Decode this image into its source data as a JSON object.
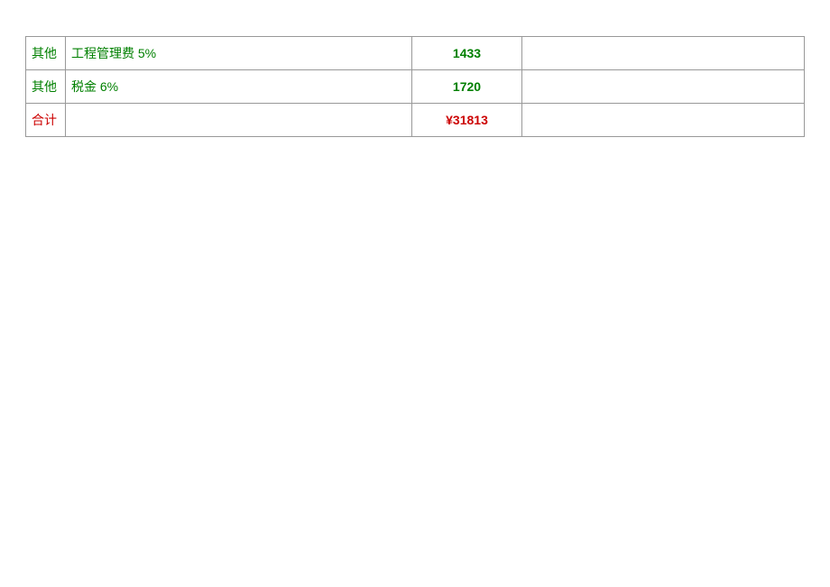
{
  "table": {
    "colors": {
      "green": "#008000",
      "red": "#cc0000",
      "border": "#999999",
      "background": "#ffffff"
    },
    "column_widths": {
      "col1": 44,
      "col2": 384,
      "col3": 122,
      "col4": "auto"
    },
    "font_size": 14,
    "rows": [
      {
        "category": "其他",
        "description": "工程管理费 5%",
        "value": "1433",
        "note": "",
        "color_class": "green"
      },
      {
        "category": "其他",
        "description": "税金 6%",
        "value": "1720",
        "note": "",
        "color_class": "green"
      },
      {
        "category": "合计",
        "description": "",
        "value": "¥31813",
        "note": "",
        "color_class": "red"
      }
    ]
  }
}
